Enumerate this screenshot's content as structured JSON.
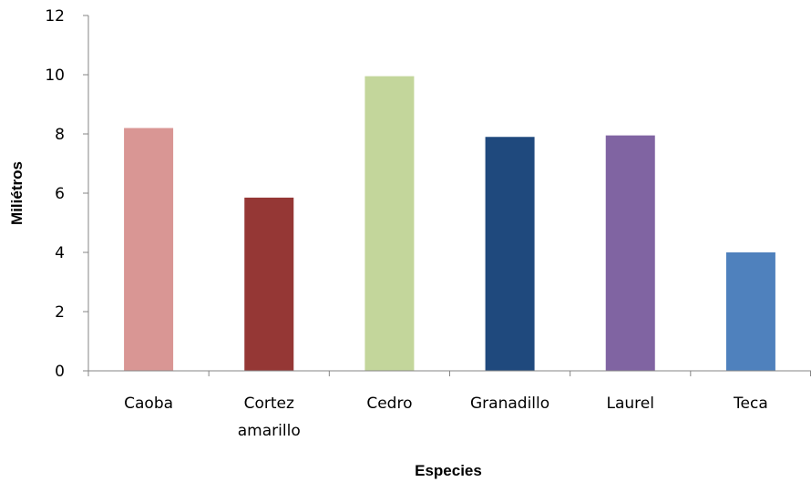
{
  "chart_data": {
    "type": "bar",
    "title": "",
    "xlabel": "Especies",
    "ylabel": "Miliétros",
    "ylim": [
      0,
      12
    ],
    "yticks": [
      0,
      2,
      4,
      6,
      8,
      10,
      12
    ],
    "grid": false,
    "legend": "none",
    "categories": [
      [
        "Caoba"
      ],
      [
        "Cortez",
        "amarillo"
      ],
      [
        "Cedro"
      ],
      [
        "Granadillo"
      ],
      [
        "Laurel"
      ],
      [
        "Teca"
      ]
    ],
    "values": [
      8.2,
      5.85,
      9.95,
      7.9,
      7.95,
      4.0
    ],
    "colors": [
      "#d99694",
      "#953735",
      "#c3d69b",
      "#1f497d",
      "#8064a2",
      "#4f81bd"
    ]
  }
}
